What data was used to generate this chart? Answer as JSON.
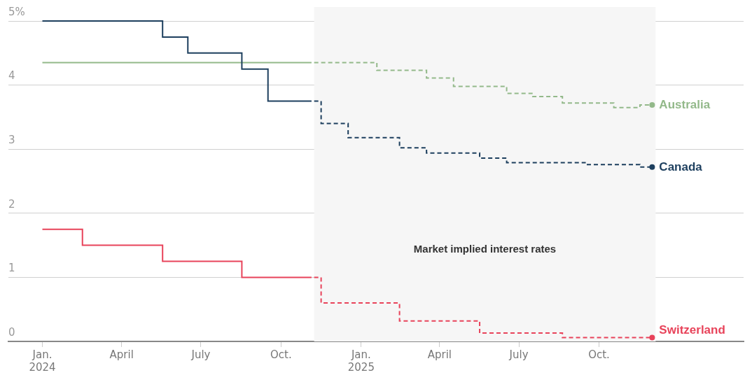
{
  "chart_data": {
    "type": "step",
    "xlim": [
      "2023-11-23",
      "2026-03-16"
    ],
    "xticks": [
      {
        "value": "2024-01-01",
        "label": "Jan.\n2024"
      },
      {
        "value": "2024-04-01",
        "label": "April"
      },
      {
        "value": "2024-07-01",
        "label": "July"
      },
      {
        "value": "2024-10-01",
        "label": "Oct."
      },
      {
        "value": "2025-01-01",
        "label": "Jan.\n2025"
      },
      {
        "value": "2025-04-01",
        "label": "April"
      },
      {
        "value": "2025-07-01",
        "label": "July"
      },
      {
        "value": "2025-10-01",
        "label": "Oct."
      }
    ],
    "ylim": [
      0,
      5
    ],
    "yticks": [
      0,
      1,
      2,
      3,
      4,
      {
        "value": 5,
        "label": "5%"
      }
    ],
    "grid": "y",
    "legend": false,
    "series": [
      {
        "color": "#1d3f5e",
        "line_style": "solid",
        "x": [
          "2024-01-01",
          "2024-05-18",
          "2024-06-16",
          "2024-08-17",
          "2024-09-16",
          "2024-11-05"
        ],
        "values": [
          5,
          4.75,
          4.5,
          4.25,
          3.75,
          3.75
        ]
      },
      {
        "color": "#93b98a",
        "line_style": "solid",
        "x": [
          "2024-01-01",
          "2024-11-05"
        ],
        "values": [
          4.35,
          4.35
        ]
      },
      {
        "color": "#e8435a",
        "line_style": "solid",
        "x": [
          "2024-01-01",
          "2024-02-16",
          "2024-05-18",
          "2024-08-17",
          "2024-11-05"
        ],
        "values": [
          1.75,
          1.5,
          1.25,
          1,
          1
        ]
      },
      {
        "name": "Australia",
        "color": "#93b98a",
        "line_style": "dashed",
        "x": [
          "2024-11-08",
          "2025-01-19",
          "2025-03-17",
          "2025-04-17",
          "2025-06-17",
          "2025-07-17",
          "2025-08-20",
          "2025-10-18",
          "2025-11-17",
          "2025-12-01"
        ],
        "values": [
          4.35,
          4.23,
          4.11,
          3.98,
          3.87,
          3.82,
          3.72,
          3.65,
          3.69,
          3.69
        ]
      },
      {
        "name": "Canada",
        "color": "#1d3f5e",
        "line_style": "dashed",
        "x": [
          "2024-11-08",
          "2024-11-16",
          "2024-12-17",
          "2025-02-14",
          "2025-03-17",
          "2025-05-17",
          "2025-06-17",
          "2025-09-15",
          "2025-11-17",
          "2025-12-01"
        ],
        "values": [
          3.75,
          3.4,
          3.18,
          3.02,
          2.94,
          2.86,
          2.79,
          2.76,
          2.72,
          2.72
        ]
      },
      {
        "name": "Switzerland",
        "color": "#e8435a",
        "line_style": "dashed",
        "x": [
          "2024-11-08",
          "2024-11-16",
          "2025-02-14",
          "2025-05-17",
          "2025-08-20",
          "2025-12-01"
        ],
        "values": [
          1,
          0.6,
          0.32,
          0.13,
          0.06,
          0.06
        ]
      }
    ],
    "bands": [
      {
        "axis": "x",
        "from": "2024-11-08",
        "to": "2025-12-05",
        "label": "Market implied interest rates",
        "color": "#f6f6f6"
      }
    ]
  }
}
